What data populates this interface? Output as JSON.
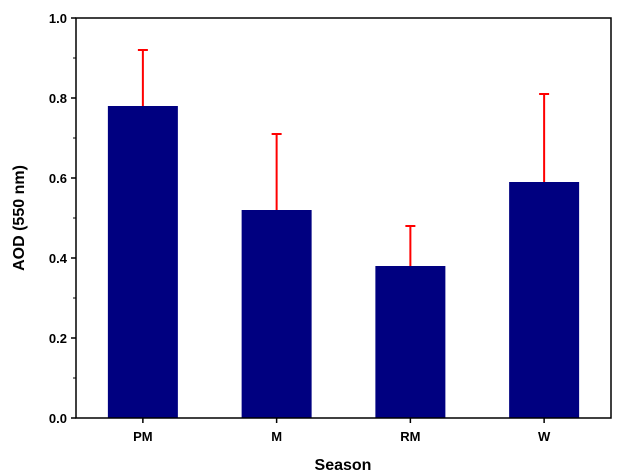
{
  "chart_data": {
    "type": "bar",
    "categories": [
      "PM",
      "M",
      "RM",
      "W"
    ],
    "values": [
      0.78,
      0.52,
      0.38,
      0.59
    ],
    "error_upper": [
      0.14,
      0.19,
      0.1,
      0.22
    ],
    "xlabel": "Season",
    "ylabel": "AOD (550 nm)",
    "ylim": [
      0.0,
      1.0
    ],
    "yticks": [
      "0.0",
      "0.2",
      "0.4",
      "0.6",
      "0.8",
      "1.0"
    ],
    "grid": false,
    "legend": "none",
    "colors": {
      "bar": "#000080",
      "error": "#ff0000",
      "axis": "#000000"
    }
  }
}
